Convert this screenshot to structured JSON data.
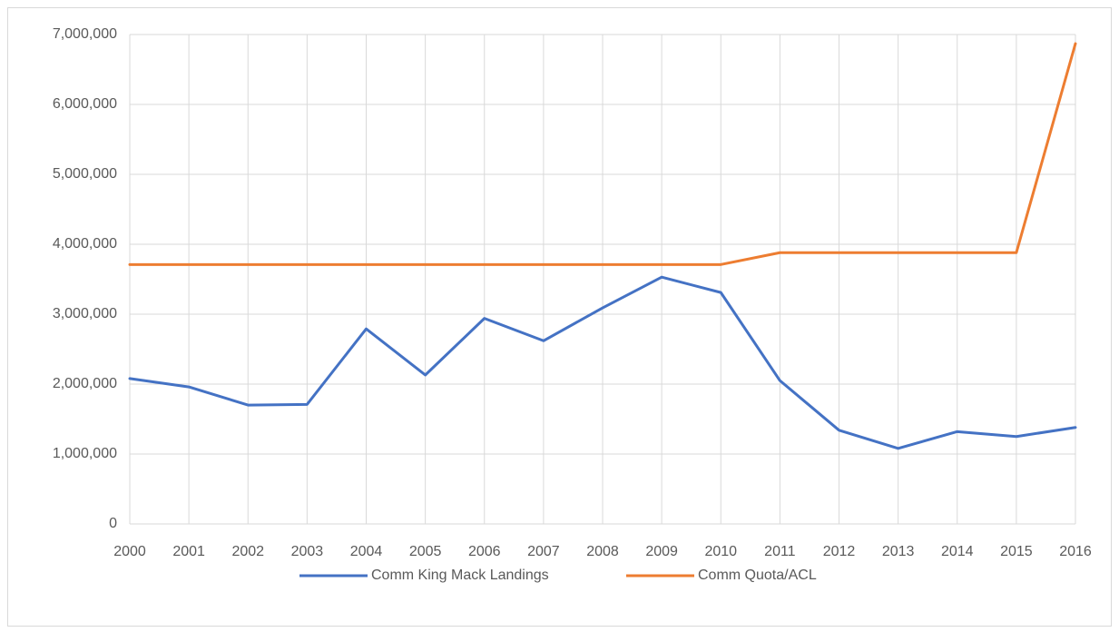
{
  "chart_data": {
    "type": "line",
    "categories": [
      "2000",
      "2001",
      "2002",
      "2003",
      "2004",
      "2005",
      "2006",
      "2007",
      "2008",
      "2009",
      "2010",
      "2011",
      "2012",
      "2013",
      "2014",
      "2015",
      "2016"
    ],
    "series": [
      {
        "name": "Comm King Mack Landings",
        "color": "#4472c4",
        "values": [
          2080000,
          1960000,
          1700000,
          1710000,
          2790000,
          2130000,
          2940000,
          2620000,
          3090000,
          3530000,
          3310000,
          2050000,
          1340000,
          1080000,
          1320000,
          1250000,
          1380000
        ]
      },
      {
        "name": "Comm Quota/ACL",
        "color": "#ed7d31",
        "values": [
          3710000,
          3710000,
          3710000,
          3710000,
          3710000,
          3710000,
          3710000,
          3710000,
          3710000,
          3710000,
          3710000,
          3880000,
          3880000,
          3880000,
          3880000,
          3880000,
          6870000
        ]
      }
    ],
    "ylim": [
      0,
      7000000
    ],
    "yticks": [
      0,
      {
        "value": 1000000,
        "label": "1,000,000"
      },
      {
        "value": 2000000,
        "label": "2,000,000"
      },
      {
        "value": 3000000,
        "label": "3,000,000"
      },
      {
        "value": 4000000,
        "label": "4,000,000"
      },
      {
        "value": 5000000,
        "label": "5,000,000"
      },
      {
        "value": 6000000,
        "label": "6,000,000"
      },
      {
        "value": 7000000,
        "label": "7,000,000"
      }
    ],
    "grid": true,
    "legend": "bottom"
  }
}
